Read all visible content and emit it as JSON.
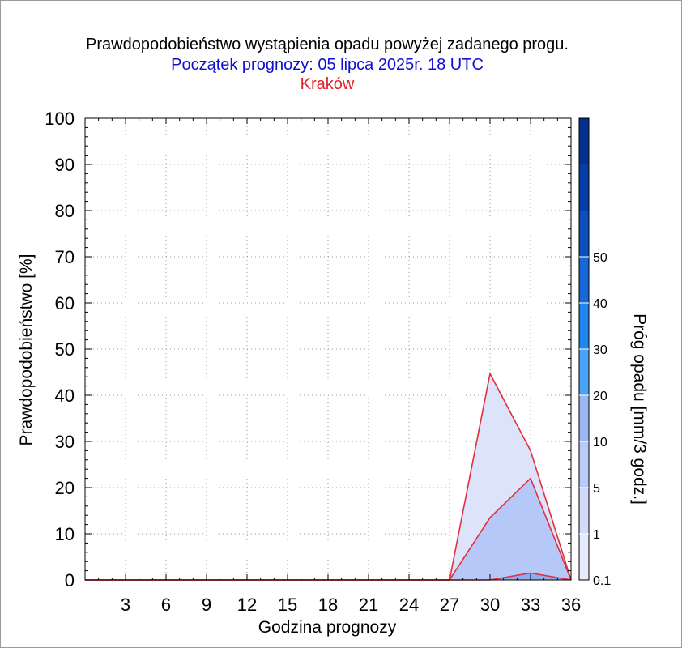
{
  "title": "Prawdopodobieństwo wystąpienia opadu powyżej zadanego progu.",
  "subtitle": "Początek prognozy: 05 lipca 2025r. 18 UTC",
  "location": "Kraków",
  "colors": {
    "title": "#000000",
    "subtitle": "#1010d0",
    "location": "#e0202c",
    "series_line": "#e0303c",
    "grid": "#9a9a9a"
  },
  "chart_data": {
    "type": "area",
    "title": "Prawdopodobieństwo wystąpienia opadu powyżej zadanego progu.",
    "xlabel": "Godzina prognozy",
    "ylabel": "Prawdopodobieństwo [%]",
    "colorbar_label": "Próg opadu [mm/3 godz.]",
    "xlim": [
      0,
      36
    ],
    "ylim": [
      0,
      100
    ],
    "x_ticks": [
      "3",
      "6",
      "9",
      "12",
      "15",
      "18",
      "21",
      "24",
      "27",
      "30",
      "33",
      "36"
    ],
    "y_ticks": [
      "0",
      "10",
      "20",
      "30",
      "40",
      "50",
      "60",
      "70",
      "80",
      "90",
      "100"
    ],
    "grid": true,
    "x": [
      0,
      3,
      6,
      9,
      12,
      15,
      18,
      21,
      24,
      27,
      30,
      33,
      36
    ],
    "series": [
      {
        "name": "0.1",
        "color": "#dce3fb",
        "values": [
          0,
          0,
          0,
          0,
          0,
          0,
          0,
          0,
          0,
          0,
          44.7,
          28,
          0
        ]
      },
      {
        "name": "1",
        "color": "#b5c8f8",
        "values": [
          0,
          0,
          0,
          0,
          0,
          0,
          0,
          0,
          0,
          0,
          13.5,
          22,
          0
        ]
      },
      {
        "name": "5",
        "color": "#90acf2",
        "values": [
          0,
          0,
          0,
          0,
          0,
          0,
          0,
          0,
          0,
          0,
          0,
          1.5,
          0
        ]
      }
    ],
    "colorbar": {
      "labels": [
        "0.1",
        "1",
        "5",
        "10",
        "20",
        "30",
        "40",
        "50"
      ],
      "colors": [
        "#e6ebfb",
        "#d2dcf9",
        "#b9cbf7",
        "#9cb8f4",
        "#4ba2f4",
        "#1e86ec",
        "#1768d6",
        "#0c4fbd",
        "#063ea7",
        "#032f8e"
      ]
    }
  }
}
